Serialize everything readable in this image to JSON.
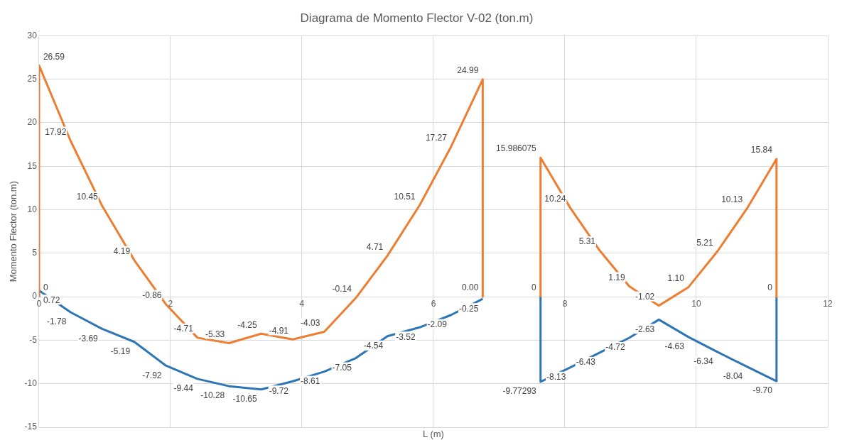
{
  "chart_data": {
    "type": "line",
    "title": "Diagrama de Momento Flector V-02 (ton.m)",
    "xlabel": "L (m)",
    "ylabel": "Momento Flector (ton.m)",
    "xlim": [
      0,
      12
    ],
    "xticks": [
      0,
      2,
      4,
      6,
      8,
      10,
      12
    ],
    "ylim": [
      -15,
      30
    ],
    "yticks": [
      -15,
      -10,
      -5,
      0,
      5,
      10,
      15,
      20,
      25,
      30
    ],
    "grid": true,
    "legend": false,
    "marker": "none",
    "line_style": "solid",
    "series": [
      {
        "color": "#ed7d31",
        "x": [
          0,
          0,
          0.48,
          0.96,
          1.45,
          1.93,
          2.41,
          2.89,
          3.38,
          3.86,
          4.34,
          4.82,
          5.3,
          5.79,
          6.27,
          6.75,
          6.75
        ],
        "values": [
          0,
          26.59,
          17.92,
          10.45,
          4.19,
          -0.86,
          -4.71,
          -5.33,
          -4.25,
          -4.91,
          -4.03,
          -0.14,
          4.71,
          10.51,
          17.27,
          24.99,
          0
        ],
        "value_labels": [
          "0",
          "26.59",
          "17.92",
          "10.45",
          "4.19",
          "-0.86",
          "-4.71",
          "-5.33",
          "-4.25",
          "-4.91",
          "-4.03",
          "-0.14",
          "4.71",
          "10.51",
          "17.27",
          "24.99",
          "0.00"
        ]
      },
      {
        "color": "#2e75b6",
        "x": [
          0,
          0,
          0.48,
          0.96,
          1.45,
          1.93,
          2.41,
          2.89,
          3.38,
          3.86,
          4.34,
          4.82,
          5.3,
          5.79,
          6.27,
          6.75
        ],
        "values": [
          0,
          0.72,
          -1.78,
          -3.69,
          -5.19,
          -7.92,
          -9.44,
          -10.28,
          -10.65,
          -9.72,
          -8.61,
          -7.05,
          -4.54,
          -3.52,
          -2.09,
          -0.25
        ],
        "value_labels": [
          null,
          "0.72",
          "-1.78",
          "-3.69",
          "-5.19",
          "-7.92",
          "-9.44",
          "-10.28",
          "-10.65",
          "-9.72",
          "-8.61",
          "-7.05",
          "-4.54",
          "-3.52",
          "-2.09",
          "-0.25"
        ]
      },
      {
        "color": "#ed7d31",
        "x": [
          7.63,
          7.63,
          8.08,
          8.53,
          8.98,
          9.43,
          9.88,
          10.32,
          10.77,
          11.22,
          11.22
        ],
        "values": [
          0,
          15.986075,
          10.24,
          5.31,
          1.19,
          -1.02,
          1.1,
          5.21,
          10.13,
          15.84,
          0
        ],
        "value_labels": [
          "0",
          "15.986075",
          "10.24",
          "5.31",
          "1.19",
          "-1.02",
          "1.10",
          "5.21",
          "10.13",
          "15.84",
          "0"
        ]
      },
      {
        "color": "#2e75b6",
        "x": [
          7.63,
          7.63,
          8.08,
          8.53,
          8.98,
          9.43,
          9.88,
          10.32,
          10.77,
          11.22,
          11.22
        ],
        "values": [
          0,
          -9.77293,
          -8.13,
          -6.43,
          -4.72,
          -2.63,
          -4.63,
          -6.34,
          -8.04,
          -9.7,
          0
        ],
        "value_labels": [
          null,
          "-9.77293",
          "-8.13",
          "-6.43",
          "-4.72",
          "-2.63",
          "-4.63",
          "-6.34",
          "-8.04",
          "-9.70",
          null
        ]
      }
    ]
  }
}
